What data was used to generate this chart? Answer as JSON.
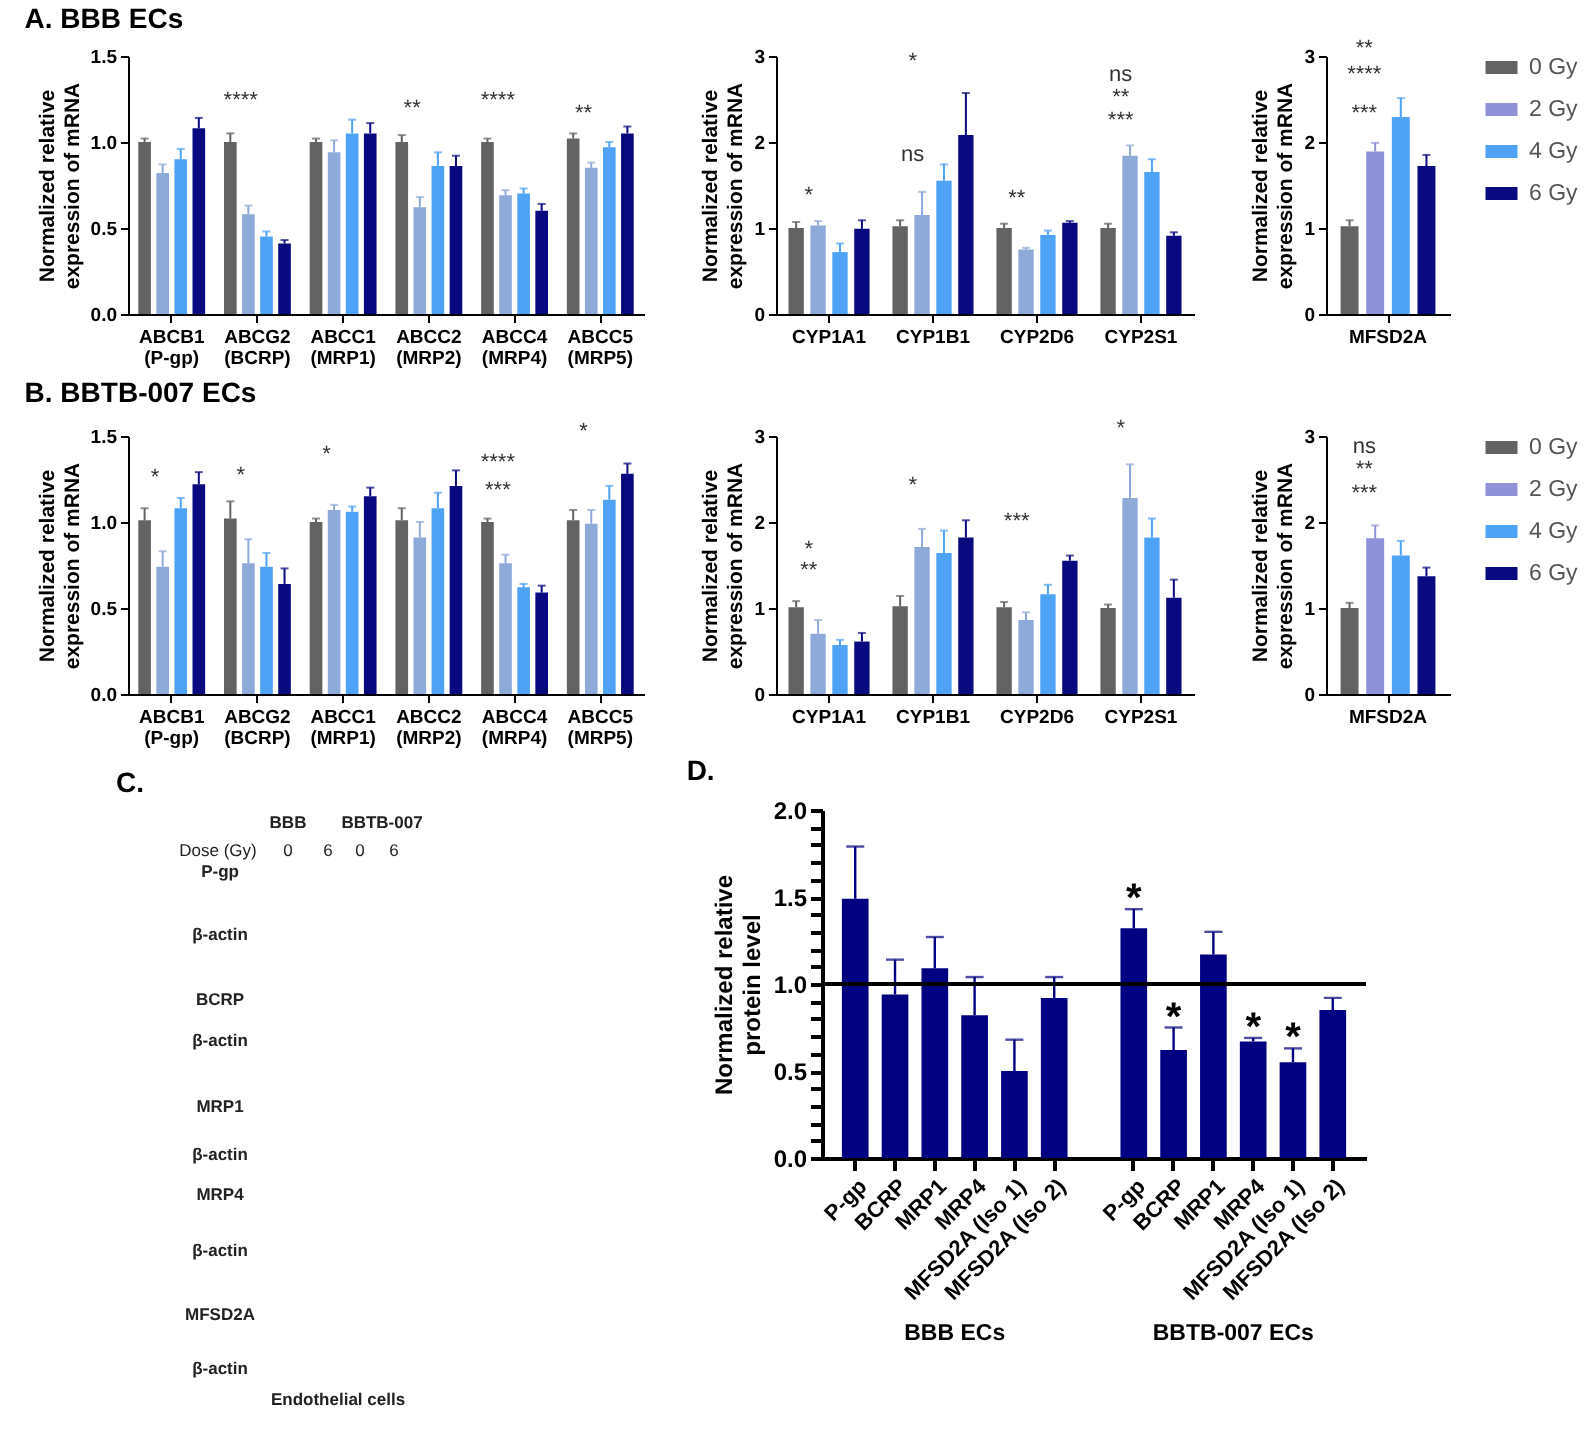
{
  "chart_data": [
    {
      "type": "bar",
      "title": "A. BBB ECs",
      "ylabel": "Normalized relative expression of mRNA",
      "categories": [
        "ABCB1 (P-gp)",
        "ABCG2 (BCRP)",
        "ABCC1 (MRP1)",
        "ABCC2 (MRP2)",
        "ABCC4 (MRP4)",
        "ABCC5 (MRP5)"
      ],
      "series": [
        {
          "color": "#636363",
          "values": [
            1,
            1,
            1,
            1,
            1,
            1.02
          ],
          "errors": [
            [
              1,
              1.02
            ],
            [
              1,
              1.05
            ],
            [
              1,
              1.02
            ],
            [
              1,
              1.04
            ],
            [
              1,
              1.02
            ],
            [
              1.02,
              1.05
            ]
          ]
        },
        {
          "color": "#8eaad8",
          "values": [
            0.82,
            0.58,
            0.94,
            0.62,
            0.69,
            0.85
          ],
          "errors": [
            [
              0.82,
              0.87
            ],
            [
              0.58,
              0.63
            ],
            [
              0.94,
              1.01
            ],
            [
              0.62,
              0.68
            ],
            [
              0.69,
              0.72
            ],
            [
              0.85,
              0.88
            ]
          ]
        },
        {
          "color": "#4fa3f7",
          "values": [
            0.9,
            0.45,
            1.05,
            0.86,
            0.7,
            0.97
          ],
          "errors": [
            [
              0.9,
              0.96
            ],
            [
              0.45,
              0.48
            ],
            [
              1.05,
              1.13
            ],
            [
              0.86,
              0.94
            ],
            [
              0.7,
              0.73
            ],
            [
              0.97,
              1.0
            ]
          ]
        },
        {
          "color": "#0a0a80",
          "values": [
            1.08,
            0.41,
            1.05,
            0.86,
            0.6,
            1.05
          ],
          "errors": [
            [
              1.08,
              1.14
            ],
            [
              0.41,
              0.43
            ],
            [
              1.05,
              1.11
            ],
            [
              0.86,
              0.92
            ],
            [
              0.6,
              0.64
            ],
            [
              1.05,
              1.09
            ]
          ]
        }
      ],
      "ylim": [
        0,
        1.5
      ],
      "yticks": [
        {
          "value": 0,
          "label": "0.0"
        },
        0.5,
        {
          "value": 1,
          "label": "1.0"
        },
        1.5
      ],
      "annotations": [
        "****",
        "**",
        "****",
        "**"
      ]
    },
    {
      "type": "bar",
      "ylabel": "Normalized relative expression of mRNA",
      "categories": [
        "CYP1A1",
        "CYP1B1",
        "CYP2D6",
        "CYP2S1"
      ],
      "series": [
        {
          "color": "#636363",
          "values": [
            1,
            1.02,
            1,
            1
          ],
          "errors": [
            [
              1,
              1.07
            ],
            [
              1.02,
              1.09
            ],
            [
              1,
              1.05
            ],
            [
              1,
              1.05
            ]
          ]
        },
        {
          "color": "#8eaad8",
          "values": [
            1.03,
            1.15,
            0.75,
            1.84
          ],
          "errors": [
            [
              1.03,
              1.08
            ],
            [
              1.15,
              1.42
            ],
            [
              0.75,
              0.77
            ],
            [
              1.84,
              1.96
            ]
          ]
        },
        {
          "color": "#4fa3f7",
          "values": [
            0.72,
            1.55,
            0.92,
            1.65
          ],
          "errors": [
            [
              0.72,
              0.82
            ],
            [
              1.55,
              1.74
            ],
            [
              0.92,
              0.97
            ],
            [
              1.65,
              1.8
            ]
          ]
        },
        {
          "color": "#0a0a80",
          "values": [
            0.99,
            2.08,
            1.06,
            0.91
          ],
          "errors": [
            [
              0.99,
              1.09
            ],
            [
              2.08,
              2.57
            ],
            [
              1.06,
              1.08
            ],
            [
              0.91,
              0.95
            ]
          ]
        }
      ],
      "ylim": [
        0,
        3
      ],
      "yticks": [
        0,
        1,
        2,
        3
      ],
      "annotations": [
        "*",
        "ns",
        "*",
        "**",
        "***",
        "**",
        "ns"
      ]
    },
    {
      "type": "bar",
      "ylabel": "Normalized relative expression of mRNA",
      "categories": [
        "MFSD2A"
      ],
      "legend": "right",
      "series": [
        {
          "name": "0 Gy",
          "color": "#636363",
          "values": [
            1.02
          ],
          "errors": [
            [
              1.02,
              1.09
            ]
          ]
        },
        {
          "name": "2 Gy",
          "color": "#8f92d8",
          "values": [
            1.89
          ],
          "errors": [
            [
              1.89,
              1.99
            ]
          ]
        },
        {
          "name": "4 Gy",
          "color": "#4fa3f7",
          "values": [
            2.29
          ],
          "errors": [
            [
              2.29,
              2.51
            ]
          ]
        },
        {
          "name": "6 Gy",
          "color": "#0a0a80",
          "values": [
            1.72
          ],
          "errors": [
            [
              1.72,
              1.85
            ]
          ]
        }
      ],
      "ylim": [
        0,
        3
      ],
      "yticks": [
        0,
        1,
        2,
        3
      ],
      "annotations": [
        "***",
        "****",
        "**"
      ]
    },
    {
      "type": "bar",
      "title": "B. BBTB-007 ECs",
      "ylabel": "Normalized relative expression of mRNA",
      "categories": [
        "ABCB1 (P-gp)",
        "ABCG2 (BCRP)",
        "ABCC1 (MRP1)",
        "ABCC2 (MRP2)",
        "ABCC4 (MRP4)",
        "ABCC5 (MRP5)"
      ],
      "series": [
        {
          "color": "#636363",
          "values": [
            1.01,
            1.02,
            1,
            1.01,
            1,
            1.01
          ],
          "errors": [
            [
              1.01,
              1.08
            ],
            [
              1.02,
              1.12
            ],
            [
              1,
              1.02
            ],
            [
              1.01,
              1.08
            ],
            [
              1,
              1.02
            ],
            [
              1.01,
              1.07
            ]
          ]
        },
        {
          "color": "#8eaad8",
          "values": [
            0.74,
            0.76,
            1.07,
            0.91,
            0.76,
            0.99
          ],
          "errors": [
            [
              0.74,
              0.83
            ],
            [
              0.76,
              0.9
            ],
            [
              1.07,
              1.1
            ],
            [
              0.91,
              1.0
            ],
            [
              0.76,
              0.81
            ],
            [
              0.99,
              1.07
            ]
          ]
        },
        {
          "color": "#4fa3f7",
          "values": [
            1.08,
            0.74,
            1.06,
            1.08,
            0.62,
            1.13
          ],
          "errors": [
            [
              1.08,
              1.14
            ],
            [
              0.74,
              0.82
            ],
            [
              1.06,
              1.09
            ],
            [
              1.08,
              1.17
            ],
            [
              0.62,
              0.64
            ],
            [
              1.13,
              1.21
            ]
          ]
        },
        {
          "color": "#0a0a80",
          "values": [
            1.22,
            0.64,
            1.15,
            1.21,
            0.59,
            1.28
          ],
          "errors": [
            [
              1.22,
              1.29
            ],
            [
              0.64,
              0.73
            ],
            [
              1.15,
              1.2
            ],
            [
              1.21,
              1.3
            ],
            [
              0.59,
              0.63
            ],
            [
              1.28,
              1.34
            ]
          ]
        }
      ],
      "ylim": [
        0,
        1.5
      ],
      "yticks": [
        {
          "value": 0,
          "label": "0.0"
        },
        0.5,
        {
          "value": 1,
          "label": "1.0"
        },
        1.5
      ],
      "annotations": [
        "*",
        "*",
        "*",
        "***",
        "****",
        "*"
      ]
    },
    {
      "type": "bar",
      "ylabel": "Normalized relative expression of mRNA",
      "categories": [
        "CYP1A1",
        "CYP1B1",
        "CYP2D6",
        "CYP2S1"
      ],
      "series": [
        {
          "color": "#636363",
          "values": [
            1.01,
            1.02,
            1.01,
            1
          ],
          "errors": [
            [
              1.01,
              1.08
            ],
            [
              1.02,
              1.14
            ],
            [
              1.01,
              1.07
            ],
            [
              1,
              1.04
            ]
          ]
        },
        {
          "color": "#8eaad8",
          "values": [
            0.7,
            1.71,
            0.86,
            2.28
          ],
          "errors": [
            [
              0.7,
              0.86
            ],
            [
              1.71,
              1.92
            ],
            [
              0.86,
              0.95
            ],
            [
              2.28,
              2.67
            ]
          ]
        },
        {
          "color": "#4fa3f7",
          "values": [
            0.57,
            1.64,
            1.16,
            1.82
          ],
          "errors": [
            [
              0.57,
              0.63
            ],
            [
              1.64,
              1.9
            ],
            [
              1.16,
              1.27
            ],
            [
              1.82,
              2.04
            ]
          ]
        },
        {
          "color": "#0a0a80",
          "values": [
            0.61,
            1.82,
            1.55,
            1.12
          ],
          "errors": [
            [
              0.61,
              0.71
            ],
            [
              1.82,
              2.02
            ],
            [
              1.55,
              1.61
            ],
            [
              1.12,
              1.33
            ]
          ]
        }
      ],
      "ylim": [
        0,
        3
      ],
      "yticks": [
        0,
        1,
        2,
        3
      ],
      "annotations": [
        "**",
        "*",
        "*",
        "***",
        "*"
      ]
    },
    {
      "type": "bar",
      "ylabel": "Normalized relative expression of mRNA",
      "categories": [
        "MFSD2A"
      ],
      "legend": "right",
      "series": [
        {
          "name": "0 Gy",
          "color": "#636363",
          "values": [
            1
          ],
          "errors": [
            [
              1,
              1.06
            ]
          ]
        },
        {
          "name": "2 Gy",
          "color": "#8f92d8",
          "values": [
            1.81
          ],
          "errors": [
            [
              1.81,
              1.96
            ]
          ]
        },
        {
          "name": "4 Gy",
          "color": "#4fa3f7",
          "values": [
            1.61
          ],
          "errors": [
            [
              1.61,
              1.78
            ]
          ]
        },
        {
          "name": "6 Gy",
          "color": "#0a0a80",
          "values": [
            1.37
          ],
          "errors": [
            [
              1.37,
              1.47
            ]
          ]
        }
      ],
      "ylim": [
        0,
        3
      ],
      "yticks": [
        0,
        1,
        2,
        3
      ],
      "annotations": [
        "***",
        "**",
        "ns"
      ]
    },
    {
      "type": "other",
      "title": "C.",
      "annotations": [
        "BBB",
        "BBTB-007",
        "Dose (Gy)",
        "0",
        "6",
        "0",
        "6",
        "P-gp",
        "β-actin",
        "BCRP",
        "β-actin",
        "MRP1",
        "β-actin",
        "MRP4",
        "β-actin",
        "MFSD2A",
        "β-actin",
        "Endothelial cells"
      ]
    },
    {
      "type": "bar",
      "title": "D.",
      "ylabel": "Normalized relative protein level",
      "categories": [
        "P-gp",
        "BCRP",
        "MRP1",
        "MRP4",
        "MFSD2A (Iso 1)",
        "MFSD2A (Iso 2)",
        null,
        "P-gp",
        "BCRP",
        "MRP1",
        "MRP4",
        "MFSD2A (Iso 1)",
        "MFSD2A (Iso 2)"
      ],
      "values": [
        1.49,
        0.94,
        1.09,
        0.82,
        0.5,
        0.92,
        null,
        1.32,
        0.62,
        1.17,
        0.67,
        0.55,
        0.85
      ],
      "color": "#000080",
      "errors": [
        [
          1.49,
          1.79
        ],
        [
          0.94,
          1.14
        ],
        [
          1.09,
          1.27
        ],
        [
          0.82,
          1.04
        ],
        [
          0.5,
          0.68
        ],
        [
          0.92,
          1.04
        ],
        null,
        [
          1.32,
          1.43
        ],
        [
          0.62,
          0.75
        ],
        [
          1.17,
          1.3
        ],
        [
          0.67,
          0.69
        ],
        [
          0.55,
          0.63
        ],
        [
          0.85,
          0.92
        ]
      ],
      "value_labels": [
        null,
        null,
        null,
        null,
        null,
        null,
        null,
        "*",
        "*",
        null,
        "*",
        "*",
        null
      ],
      "ylim": [
        0,
        2
      ],
      "yticks": [
        {
          "value": 0,
          "label": "0.0"
        },
        {
          "value": 0.1,
          "label": null
        },
        {
          "value": 0.2,
          "label": null
        },
        {
          "value": 0.3,
          "label": null
        },
        {
          "value": 0.4,
          "label": null
        },
        0.5,
        {
          "value": 0.6,
          "label": null
        },
        {
          "value": 0.7,
          "label": null
        },
        {
          "value": 0.8,
          "label": null
        },
        {
          "value": 0.9,
          "label": null
        },
        {
          "value": 1,
          "label": "1.0"
        },
        {
          "value": 1.1,
          "label": null
        },
        {
          "value": 1.2,
          "label": null
        },
        {
          "value": 1.3,
          "label": null
        },
        {
          "value": 1.4,
          "label": null
        },
        1.5,
        {
          "value": 1.6,
          "label": null
        },
        {
          "value": 1.7,
          "label": null
        },
        {
          "value": 1.8,
          "label": null
        },
        {
          "value": 1.9,
          "label": null
        },
        {
          "value": 2,
          "label": "2.0"
        }
      ],
      "ref_lines": [
        {
          "axis": "y",
          "value": 1,
          "color": "#000000"
        }
      ],
      "annotations": [
        "BBB ECs",
        "BBTB-007 ECs"
      ]
    }
  ]
}
